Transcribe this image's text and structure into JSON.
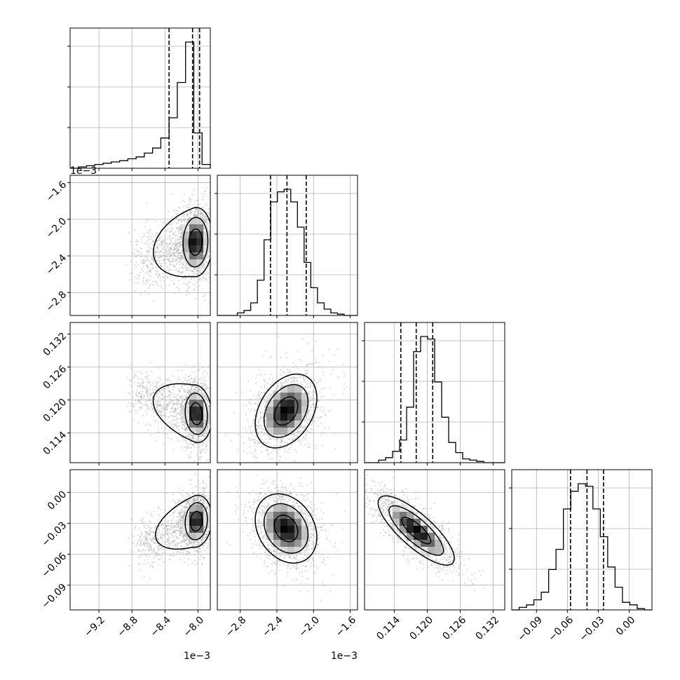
{
  "chart_data": {
    "type": "corner",
    "title": "",
    "parameters": [
      {
        "index": 0,
        "label": "",
        "range": [
          -9.55,
          -7.85
        ],
        "ticks": [
          -9.2,
          -8.8,
          -8.4,
          -8.0
        ],
        "tick_labels": [
          "−9.2",
          "−8.8",
          "−8.4",
          "−8.0"
        ],
        "offset_text": "1e−3",
        "quantiles": [
          -8.35,
          -8.065,
          -7.98
        ]
      },
      {
        "index": 1,
        "label": "",
        "range": [
          -3.05,
          -1.52
        ],
        "ticks": [
          -2.8,
          -2.4,
          -2.0,
          -1.6
        ],
        "tick_labels": [
          "−2.8",
          "−2.4",
          "−2.0",
          "−1.6"
        ],
        "offset_text": "1e−3",
        "quantiles": [
          -2.47,
          -2.29,
          -2.08
        ]
      },
      {
        "index": 2,
        "label": "",
        "range": [
          0.1086,
          0.1341
        ],
        "ticks": [
          0.114,
          0.12,
          0.126,
          0.132
        ],
        "tick_labels": [
          "0.114",
          "0.120",
          "0.126",
          "0.132"
        ],
        "offset_text": "",
        "quantiles": [
          0.1152,
          0.118,
          0.121
        ]
      },
      {
        "index": 3,
        "label": "",
        "range": [
          -0.114,
          0.022
        ],
        "ticks": [
          -0.09,
          -0.06,
          -0.03,
          0.0
        ],
        "tick_labels": [
          "−0.09",
          "−0.06",
          "−0.03",
          "0.00"
        ],
        "offset_text": "",
        "quantiles": [
          -0.057,
          -0.041,
          -0.025
        ]
      }
    ],
    "histograms": [
      [
        0,
        0.01,
        0.02,
        0.03,
        0.04,
        0.05,
        0.06,
        0.075,
        0.09,
        0.12,
        0.16,
        0.24,
        0.4,
        0.68,
        1.0,
        0.28,
        0.03
      ],
      [
        0,
        0,
        0,
        0.02,
        0.04,
        0.1,
        0.28,
        0.6,
        0.9,
        0.98,
        1.0,
        0.9,
        0.7,
        0.42,
        0.22,
        0.1,
        0.05,
        0.02,
        0.01,
        0,
        0
      ],
      [
        0,
        0,
        0.02,
        0.04,
        0.09,
        0.18,
        0.44,
        0.88,
        1.0,
        0.98,
        0.64,
        0.36,
        0.16,
        0.08,
        0.03,
        0.02,
        0.01,
        0,
        0,
        0
      ],
      [
        0,
        0.02,
        0.04,
        0.08,
        0.14,
        0.32,
        0.48,
        0.8,
        0.94,
        1.0,
        0.98,
        0.8,
        0.58,
        0.34,
        0.18,
        0.06,
        0.04,
        0.01,
        0
      ]
    ],
    "pairs": [
      {
        "x": 0,
        "y": 1,
        "mean": [
          -8.03,
          -2.25
        ],
        "sd": [
          0.1,
          0.18
        ],
        "rho": 0.05,
        "tail": [
          -8.55,
          -2.45
        ]
      },
      {
        "x": 0,
        "y": 2,
        "mean": [
          -8.02,
          0.1175
        ],
        "sd": [
          0.09,
          0.0025
        ],
        "rho": -0.1,
        "tail": [
          -8.6,
          0.1215
        ]
      },
      {
        "x": 0,
        "y": 3,
        "mean": [
          -8.02,
          -0.028
        ],
        "sd": [
          0.09,
          0.012
        ],
        "rho": 0.1,
        "tail": [
          -8.55,
          -0.052
        ]
      },
      {
        "x": 1,
        "y": 2,
        "mean": [
          -2.3,
          0.118
        ],
        "sd": [
          0.16,
          0.0032
        ],
        "rho": 0.35,
        "tail": null
      },
      {
        "x": 1,
        "y": 3,
        "mean": [
          -2.3,
          -0.035
        ],
        "sd": [
          0.16,
          0.016
        ],
        "rho": -0.25,
        "tail": null
      },
      {
        "x": 2,
        "y": 3,
        "mean": [
          0.118,
          -0.037
        ],
        "sd": [
          0.0033,
          0.016
        ],
        "rho": -0.8,
        "tail": null
      }
    ],
    "contour_levels_sigma": [
      0.8,
      1.5,
      2.1
    ],
    "grid": true,
    "style": {
      "line": "#000000",
      "grid": "#b0b0b0",
      "points": "#9a9a9a"
    }
  }
}
